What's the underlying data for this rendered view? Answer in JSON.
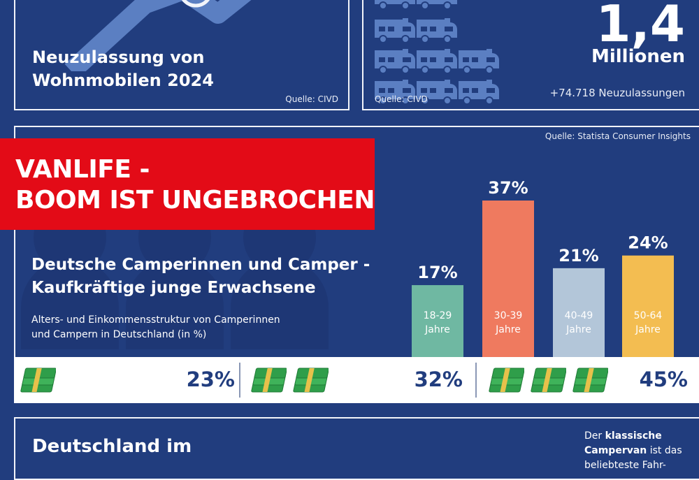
{
  "top_left": {
    "title_line1": "Neuzulassung von",
    "title_line2": "Wohnmobilen 2024",
    "source": "Quelle: CIVD"
  },
  "top_right": {
    "icon": "camper-van-icon",
    "source": "Quelle: CIVD",
    "value": "1,4",
    "unit": "Millionen",
    "note": "+74.718 Neuzulassungen"
  },
  "middle": {
    "source": "Quelle: Statista Consumer Insights",
    "banner_line1": "VANLIFE -",
    "banner_line2": "BOOM IST UNGEBROCHEN",
    "title_line1": "Deutsche Camperinnen und Camper -",
    "title_line2": "Kaufkräftige junge Erwachsene",
    "subtitle_line1": "Alters- und Einkommensstruktur von Camperinnen",
    "subtitle_line2": "und Campern in Deutschland (in %)"
  },
  "chart_data": {
    "type": "bar",
    "categories": [
      "18-29 Jahre",
      "30-39 Jahre",
      "40-49 Jahre",
      "50-64 Jahre"
    ],
    "category_lines": [
      [
        "18-29",
        "Jahre"
      ],
      [
        "30-39",
        "Jahre"
      ],
      [
        "40-49",
        "Jahre"
      ],
      [
        "50-64",
        "Jahre"
      ]
    ],
    "values": [
      17,
      37,
      21,
      24
    ],
    "value_labels": [
      "17%",
      "37%",
      "21%",
      "24%"
    ],
    "colors": [
      "#6fb8a2",
      "#ef7a5f",
      "#b3c6d9",
      "#f3bd51"
    ],
    "title": "Deutsche Camperinnen und Camper - Kaufkräftige junge Erwachsene",
    "subtitle": "Alters- und Einkommensstruktur von Camperinnen und Campern in Deutschland (in %)",
    "ylim": [
      0,
      37
    ],
    "grid": false
  },
  "income": {
    "icon": "money-stack-icon",
    "groups": [
      {
        "stacks": 1,
        "value": 23,
        "label": "23%"
      },
      {
        "stacks": 2,
        "value": 32,
        "label": "32%"
      },
      {
        "stacks": 3,
        "value": 45,
        "label": "45%"
      }
    ]
  },
  "bottom": {
    "title": "Deutschland im",
    "note_prefix": "Der",
    "note_bold": "klassische Campervan",
    "note_rest": "ist das beliebteste Fahr-"
  },
  "colors": {
    "background": "#213d7e",
    "banner": "#e30b17",
    "icon_blue": "#5b7fc2",
    "money_green": "#2f9e4a",
    "money_band": "#e7c14b"
  }
}
